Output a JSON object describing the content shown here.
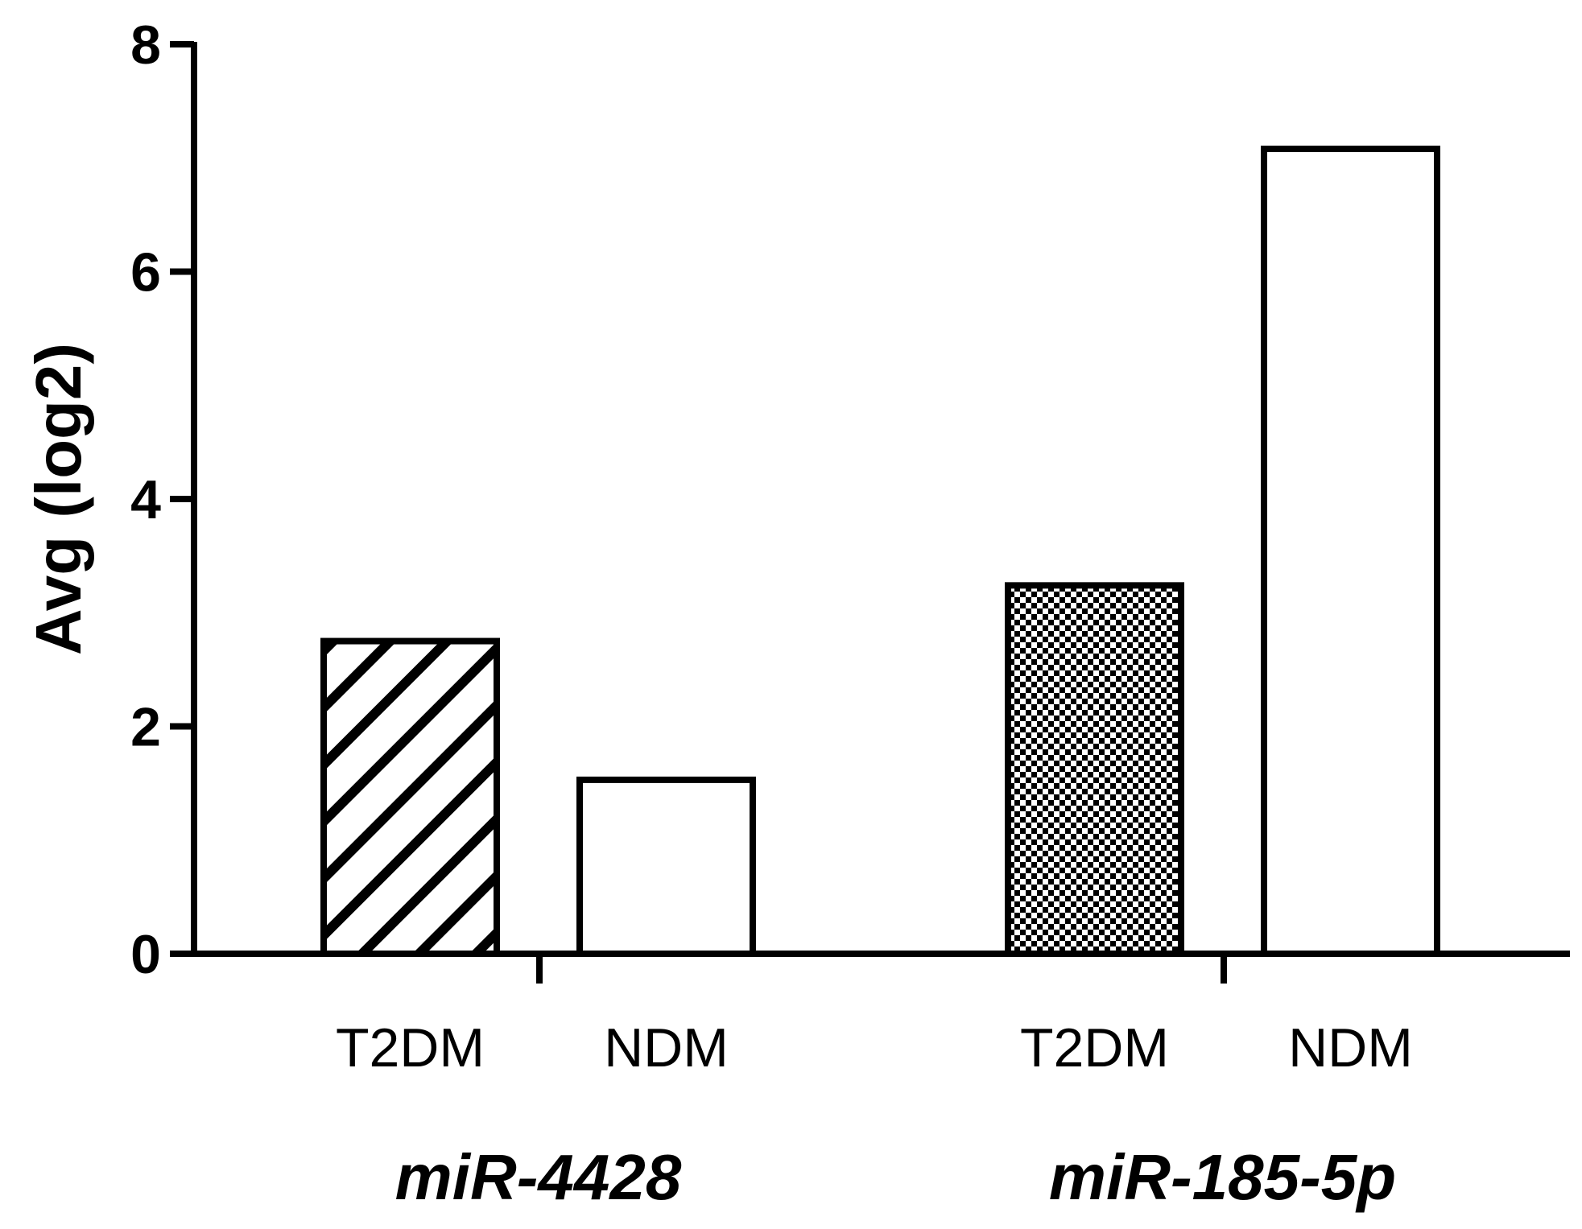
{
  "chart_data": {
    "type": "bar",
    "title": "",
    "xlabel": "",
    "ylabel": "Avg (log2)",
    "ylim": [
      0,
      8
    ],
    "yticks": [
      "0",
      "2",
      "4",
      "6",
      "8"
    ],
    "grid": false,
    "legend": "none",
    "groups": [
      {
        "name": "miR-4428",
        "bars": [
          {
            "category": "T2DM",
            "value": 2.75,
            "fill": "diagonal-hatch"
          },
          {
            "category": "NDM",
            "value": 1.53,
            "fill": "white"
          }
        ]
      },
      {
        "name": "miR-185-5p",
        "bars": [
          {
            "category": "T2DM",
            "value": 3.24,
            "fill": "checkerboard"
          },
          {
            "category": "NDM",
            "value": 7.08,
            "fill": "white"
          }
        ]
      }
    ],
    "colors": {
      "stroke": "#000000",
      "background": "#ffffff"
    }
  }
}
